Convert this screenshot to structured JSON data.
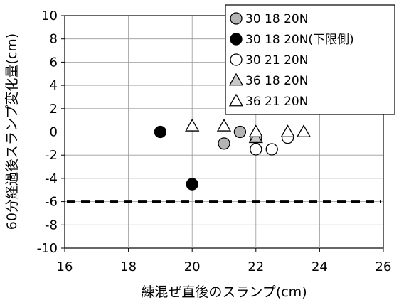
{
  "chart_data": {
    "type": "scatter",
    "title": "",
    "xlabel": "練混ぜ直後のスランプ(cm)",
    "ylabel": "60分経過後スランプ変化量(cm)",
    "xlim": [
      16,
      26
    ],
    "ylim": [
      -10,
      10
    ],
    "x_ticks": [
      "16",
      "18",
      "20",
      "22",
      "24",
      "26"
    ],
    "y_ticks": [
      "-10",
      "-8",
      "-6",
      "-4",
      "-2",
      "0",
      "2",
      "4",
      "6",
      "8",
      "10"
    ],
    "grid": true,
    "legend_position": "top-right",
    "series": [
      {
        "name": "30 18 20N",
        "marker": "circle",
        "fill": "#b4b4b4",
        "points": [
          [
            21,
            -1
          ],
          [
            21.5,
            0
          ],
          [
            22,
            -0.5
          ]
        ]
      },
      {
        "name": "30 18 20N(下限側)",
        "marker": "circle",
        "fill": "#000000",
        "points": [
          [
            19,
            0
          ],
          [
            20,
            -4.5
          ]
        ]
      },
      {
        "name": "30 21 20N",
        "marker": "circle",
        "fill": "#ffffff",
        "points": [
          [
            22,
            -1.5
          ],
          [
            22.5,
            -1.5
          ],
          [
            23,
            -0.5
          ]
        ]
      },
      {
        "name": "36 18 20N",
        "marker": "triangle",
        "fill": "#c8c8c8",
        "points": [
          [
            22,
            -0.5
          ]
        ]
      },
      {
        "name": "36 21 20N",
        "marker": "triangle",
        "fill": "#ffffff",
        "points": [
          [
            20,
            0.5
          ],
          [
            21,
            0.5
          ],
          [
            22,
            0
          ],
          [
            23,
            0
          ],
          [
            23.5,
            0
          ]
        ]
      }
    ],
    "reference_line": {
      "y": -6,
      "style": "dashed"
    }
  }
}
